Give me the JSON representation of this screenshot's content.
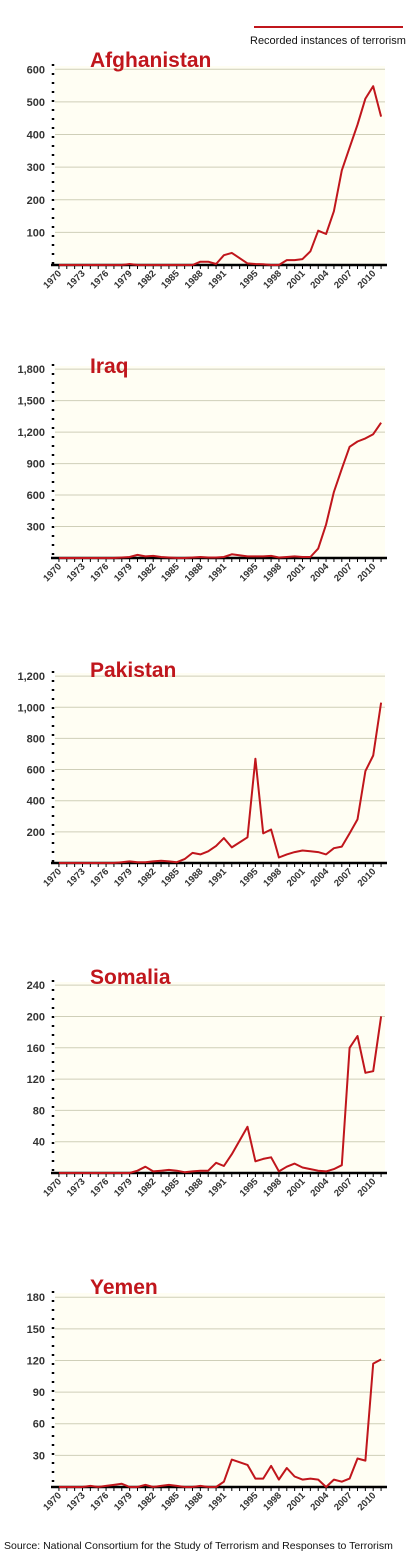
{
  "legend": {
    "label": "Recorded instances of terrorism",
    "color": "#c0161c"
  },
  "source": "Source: National Consortium for the Study of Terrorism and Responses to Terrorism",
  "style": {
    "line_color": "#c0161c",
    "title_color": "#c0161c",
    "plot_bg": "#fffef3",
    "grid_color": "#cfcfb8"
  },
  "chart_data": [
    {
      "type": "line",
      "title": "Afghanistan",
      "x_tick_labels": [
        "1970",
        "1973",
        "1976",
        "1979",
        "1982",
        "1985",
        "1988",
        "1991",
        "1995",
        "1998",
        "2001",
        "2004",
        "2007",
        "2010"
      ],
      "y_tick_labels": [
        "100",
        "200",
        "300",
        "400",
        "500",
        "600"
      ],
      "ylim": [
        0,
        610
      ],
      "x": [
        1970,
        1971,
        1972,
        1973,
        1974,
        1975,
        1976,
        1977,
        1978,
        1979,
        1980,
        1981,
        1982,
        1983,
        1984,
        1985,
        1986,
        1987,
        1988,
        1989,
        1990,
        1991,
        1992,
        1994,
        1995,
        1996,
        1997,
        1998,
        1999,
        2000,
        2001,
        2002,
        2003,
        2004,
        2005,
        2006,
        2007,
        2008,
        2009,
        2010,
        2011
      ],
      "y": [
        0,
        0,
        0,
        0,
        0,
        0,
        0,
        0,
        0,
        3,
        0,
        0,
        0,
        0,
        0,
        0,
        0,
        0,
        10,
        10,
        3,
        30,
        37,
        5,
        3,
        2,
        0,
        0,
        15,
        15,
        18,
        42,
        105,
        95,
        165,
        290,
        360,
        430,
        510,
        548,
        455
      ]
    },
    {
      "type": "line",
      "title": "Iraq",
      "x_tick_labels": [
        "1970",
        "1973",
        "1976",
        "1979",
        "1982",
        "1985",
        "1988",
        "1991",
        "1995",
        "1998",
        "2001",
        "2004",
        "2007",
        "2010"
      ],
      "y_tick_labels": [
        "300",
        "600",
        "900",
        "1,200",
        "1,500",
        "1,800"
      ],
      "ylim": [
        0,
        1830
      ],
      "x": [
        1970,
        1971,
        1972,
        1973,
        1974,
        1975,
        1976,
        1977,
        1978,
        1979,
        1980,
        1981,
        1982,
        1983,
        1984,
        1985,
        1986,
        1987,
        1988,
        1989,
        1990,
        1991,
        1992,
        1994,
        1995,
        1996,
        1997,
        1998,
        1999,
        2000,
        2001,
        2002,
        2003,
        2004,
        2005,
        2006,
        2007,
        2008,
        2009,
        2010,
        2011
      ],
      "y": [
        0,
        0,
        0,
        0,
        0,
        0,
        0,
        0,
        5,
        10,
        30,
        15,
        20,
        10,
        5,
        0,
        0,
        5,
        10,
        5,
        5,
        10,
        35,
        15,
        15,
        15,
        20,
        5,
        10,
        15,
        10,
        10,
        90,
        320,
        630,
        850,
        1060,
        1110,
        1140,
        1180,
        1290
      ]
    },
    {
      "type": "line",
      "title": "Pakistan",
      "x_tick_labels": [
        "1970",
        "1973",
        "1976",
        "1979",
        "1982",
        "1985",
        "1988",
        "1991",
        "1995",
        "1998",
        "2001",
        "2004",
        "2007",
        "2010"
      ],
      "y_tick_labels": [
        "200",
        "400",
        "600",
        "800",
        "1,000",
        "1,200"
      ],
      "ylim": [
        0,
        1220
      ],
      "x": [
        1970,
        1971,
        1972,
        1973,
        1974,
        1975,
        1976,
        1977,
        1978,
        1979,
        1980,
        1981,
        1982,
        1983,
        1984,
        1985,
        1986,
        1987,
        1988,
        1989,
        1990,
        1991,
        1992,
        1994,
        1995,
        1996,
        1997,
        1998,
        1999,
        2000,
        2001,
        2002,
        2003,
        2004,
        2005,
        2006,
        2007,
        2008,
        2009,
        2010,
        2011
      ],
      "y": [
        0,
        0,
        0,
        0,
        0,
        0,
        0,
        0,
        5,
        10,
        5,
        5,
        10,
        15,
        10,
        5,
        25,
        65,
        55,
        75,
        110,
        160,
        100,
        165,
        670,
        190,
        215,
        35,
        55,
        70,
        80,
        75,
        70,
        55,
        95,
        105,
        190,
        280,
        590,
        690,
        1030
      ]
    },
    {
      "type": "line",
      "title": "Somalia",
      "x_tick_labels": [
        "1970",
        "1973",
        "1976",
        "1979",
        "1982",
        "1985",
        "1988",
        "1991",
        "1995",
        "1998",
        "2001",
        "2004",
        "2007",
        "2010"
      ],
      "y_tick_labels": [
        "40",
        "80",
        "120",
        "160",
        "200",
        "240"
      ],
      "ylim": [
        0,
        244
      ],
      "x": [
        1970,
        1971,
        1972,
        1973,
        1974,
        1975,
        1976,
        1977,
        1978,
        1979,
        1980,
        1981,
        1982,
        1983,
        1984,
        1985,
        1986,
        1987,
        1988,
        1989,
        1990,
        1991,
        1992,
        1994,
        1995,
        1996,
        1997,
        1998,
        1999,
        2000,
        2001,
        2002,
        2003,
        2004,
        2005,
        2006,
        2007,
        2008,
        2009,
        2010,
        2011
      ],
      "y": [
        0,
        0,
        0,
        0,
        0,
        0,
        0,
        0,
        0,
        0,
        3,
        8,
        2,
        3,
        4,
        3,
        1,
        2,
        3,
        3,
        13,
        9,
        24,
        59,
        15,
        18,
        20,
        2,
        8,
        12,
        7,
        5,
        3,
        2,
        5,
        10,
        160,
        175,
        128,
        130,
        200
      ]
    },
    {
      "type": "line",
      "title": "Yemen",
      "x_tick_labels": [
        "1970",
        "1973",
        "1976",
        "1979",
        "1982",
        "1985",
        "1988",
        "1991",
        "1995",
        "1998",
        "2001",
        "2004",
        "2007",
        "2010"
      ],
      "y_tick_labels": [
        "30",
        "60",
        "90",
        "120",
        "150",
        "180"
      ],
      "ylim": [
        0,
        184
      ],
      "x": [
        1970,
        1971,
        1972,
        1973,
        1974,
        1975,
        1976,
        1977,
        1978,
        1979,
        1980,
        1981,
        1982,
        1983,
        1984,
        1985,
        1986,
        1987,
        1988,
        1989,
        1990,
        1991,
        1992,
        1994,
        1995,
        1996,
        1997,
        1998,
        1999,
        2000,
        2001,
        2002,
        2003,
        2004,
        2005,
        2006,
        2007,
        2008,
        2009,
        2010,
        2011
      ],
      "y": [
        0,
        0,
        0,
        0,
        1,
        0,
        1,
        2,
        3,
        0,
        0,
        2,
        0,
        1,
        2,
        1,
        0,
        0,
        1,
        0,
        0,
        5,
        26,
        21,
        8,
        8,
        20,
        7,
        18,
        10,
        7,
        8,
        7,
        0,
        7,
        5,
        8,
        27,
        25,
        117,
        121
      ]
    }
  ]
}
